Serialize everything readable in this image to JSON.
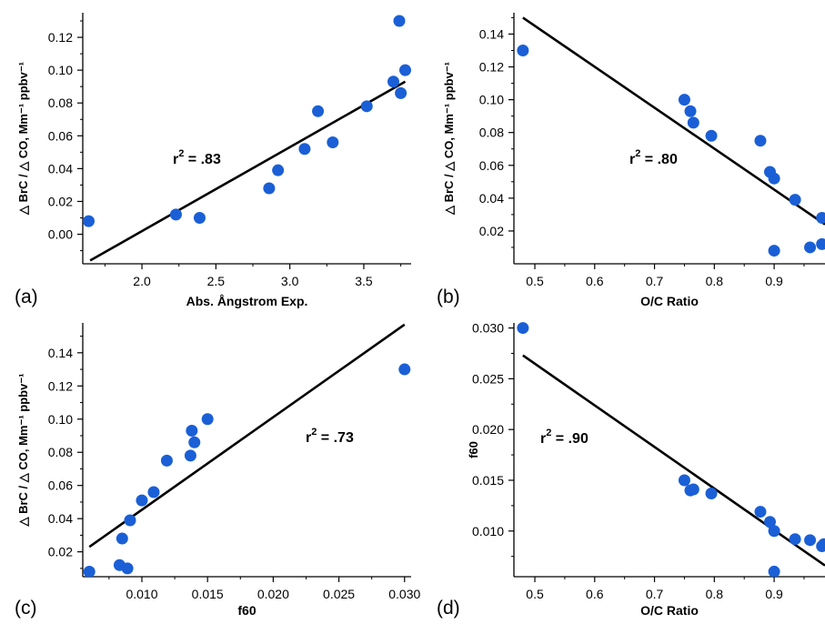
{
  "chart_data": [
    {
      "type": "scatter",
      "panel_label": "(a)",
      "xlabel": "Abs. Ångstrom Exp.",
      "ylabel": "△ BrC / △ CO, Mm⁻¹ ppbv⁻¹",
      "annotation": "r² = .83",
      "xlim": [
        1.6,
        3.82
      ],
      "ylim": [
        -0.018,
        0.135
      ],
      "xticks": [
        2.0,
        2.5,
        3.0,
        3.5
      ],
      "xtick_labels": [
        "2.0",
        "2.5",
        "3.0",
        "3.5"
      ],
      "yticks": [
        0.0,
        0.02,
        0.04,
        0.06,
        0.08,
        0.1,
        0.12
      ],
      "ytick_labels": [
        "0.00",
        "0.02",
        "0.04",
        "0.06",
        "0.08",
        "0.10",
        "0.12"
      ],
      "points": [
        [
          1.64,
          0.008
        ],
        [
          2.23,
          0.012
        ],
        [
          2.39,
          0.01
        ],
        [
          2.86,
          0.028
        ],
        [
          2.92,
          0.039
        ],
        [
          3.1,
          0.052
        ],
        [
          3.19,
          0.075
        ],
        [
          3.29,
          0.056
        ],
        [
          3.52,
          0.078
        ],
        [
          3.7,
          0.093
        ],
        [
          3.74,
          0.13
        ],
        [
          3.75,
          0.086
        ],
        [
          3.78,
          0.1
        ]
      ],
      "fit_line": [
        [
          1.65,
          -0.016
        ],
        [
          3.78,
          0.093
        ]
      ],
      "colors": {
        "points": "#1a5fd6",
        "line": "#000000"
      }
    },
    {
      "type": "scatter",
      "panel_label": "(b)",
      "xlabel": "O/C Ratio",
      "ylabel": "△ BrC / △ CO, Mm⁻¹ ppbv⁻¹",
      "annotation": "r² = .80",
      "xlim": [
        0.465,
        0.985
      ],
      "ylim": [
        0.0,
        0.153
      ],
      "xticks": [
        0.5,
        0.6,
        0.7,
        0.8,
        0.9
      ],
      "xtick_labels": [
        "0.5",
        "0.6",
        "0.7",
        "0.8",
        "0.9"
      ],
      "yticks": [
        0.02,
        0.04,
        0.06,
        0.08,
        0.1,
        0.12,
        0.14
      ],
      "ytick_labels": [
        "0.02",
        "0.04",
        "0.06",
        "0.08",
        "0.10",
        "0.12",
        "0.14"
      ],
      "points": [
        [
          0.48,
          0.13
        ],
        [
          0.75,
          0.1
        ],
        [
          0.76,
          0.093
        ],
        [
          0.765,
          0.086
        ],
        [
          0.795,
          0.078
        ],
        [
          0.877,
          0.075
        ],
        [
          0.893,
          0.056
        ],
        [
          0.9,
          0.052
        ],
        [
          0.935,
          0.039
        ],
        [
          0.9,
          0.008
        ],
        [
          0.96,
          0.01
        ],
        [
          0.98,
          0.012
        ],
        [
          0.98,
          0.028
        ]
      ],
      "fit_line": [
        [
          0.48,
          0.15
        ],
        [
          0.985,
          0.024
        ]
      ],
      "colors": {
        "points": "#1a5fd6",
        "line": "#000000"
      }
    },
    {
      "type": "scatter",
      "panel_label": "(c)",
      "xlabel": "f60",
      "ylabel": "△ BrC / △ CO, Mm⁻¹ ppbv⁻¹",
      "annotation": "r² = .73",
      "xlim": [
        0.0055,
        0.0305
      ],
      "ylim": [
        0.005,
        0.158
      ],
      "xticks": [
        0.01,
        0.015,
        0.02,
        0.025,
        0.03
      ],
      "xtick_labels": [
        "0.010",
        "0.015",
        "0.020",
        "0.025",
        "0.030"
      ],
      "yticks": [
        0.02,
        0.04,
        0.06,
        0.08,
        0.1,
        0.12,
        0.14
      ],
      "ytick_labels": [
        "0.02",
        "0.04",
        "0.06",
        "0.08",
        "0.10",
        "0.12",
        "0.14"
      ],
      "points": [
        [
          0.006,
          0.008
        ],
        [
          0.0083,
          0.012
        ],
        [
          0.0085,
          0.028
        ],
        [
          0.0089,
          0.01
        ],
        [
          0.0091,
          0.039
        ],
        [
          0.01,
          0.051
        ],
        [
          0.0109,
          0.056
        ],
        [
          0.0119,
          0.075
        ],
        [
          0.0137,
          0.078
        ],
        [
          0.0138,
          0.093
        ],
        [
          0.014,
          0.086
        ],
        [
          0.015,
          0.1
        ],
        [
          0.03,
          0.13
        ]
      ],
      "fit_line": [
        [
          0.006,
          0.023
        ],
        [
          0.03,
          0.157
        ]
      ],
      "colors": {
        "points": "#1a5fd6",
        "line": "#000000"
      }
    },
    {
      "type": "scatter",
      "panel_label": "(d)",
      "xlabel": "O/C Ratio",
      "ylabel": "f60",
      "annotation": "r² = .90",
      "xlim": [
        0.465,
        0.985
      ],
      "ylim": [
        0.0055,
        0.0305
      ],
      "xticks": [
        0.5,
        0.6,
        0.7,
        0.8,
        0.9
      ],
      "xtick_labels": [
        "0.5",
        "0.6",
        "0.7",
        "0.8",
        "0.9"
      ],
      "yticks": [
        0.01,
        0.015,
        0.02,
        0.025,
        0.03
      ],
      "ytick_labels": [
        "0.010",
        "0.015",
        "0.020",
        "0.025",
        "0.030"
      ],
      "points": [
        [
          0.48,
          0.03
        ],
        [
          0.75,
          0.015
        ],
        [
          0.76,
          0.014
        ],
        [
          0.765,
          0.0141
        ],
        [
          0.795,
          0.0137
        ],
        [
          0.877,
          0.0119
        ],
        [
          0.893,
          0.0109
        ],
        [
          0.9,
          0.01
        ],
        [
          0.935,
          0.0092
        ],
        [
          0.9,
          0.006
        ],
        [
          0.96,
          0.0091
        ],
        [
          0.98,
          0.0085
        ],
        [
          0.983,
          0.0087
        ]
      ],
      "fit_line": [
        [
          0.48,
          0.0273
        ],
        [
          0.985,
          0.0066
        ]
      ],
      "colors": {
        "points": "#1a5fd6",
        "line": "#000000"
      }
    }
  ]
}
